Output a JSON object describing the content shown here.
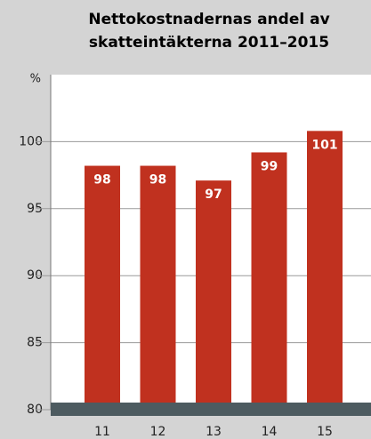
{
  "chart_data": {
    "type": "bar",
    "title": [
      "Nettokostnadernas andel av",
      "skatteintäkterna 2011–2015"
    ],
    "y_label": "%",
    "categories": [
      "11",
      "12",
      "13",
      "14",
      "15"
    ],
    "values": [
      98.2,
      98.2,
      97.1,
      99.2,
      100.8
    ],
    "value_labels": [
      "98",
      "98",
      "97",
      "99",
      "101"
    ],
    "color": "#c0311f",
    "ylim": [
      80,
      105
    ],
    "yticks": [
      80,
      85,
      90,
      95,
      100
    ],
    "grid": true
  }
}
